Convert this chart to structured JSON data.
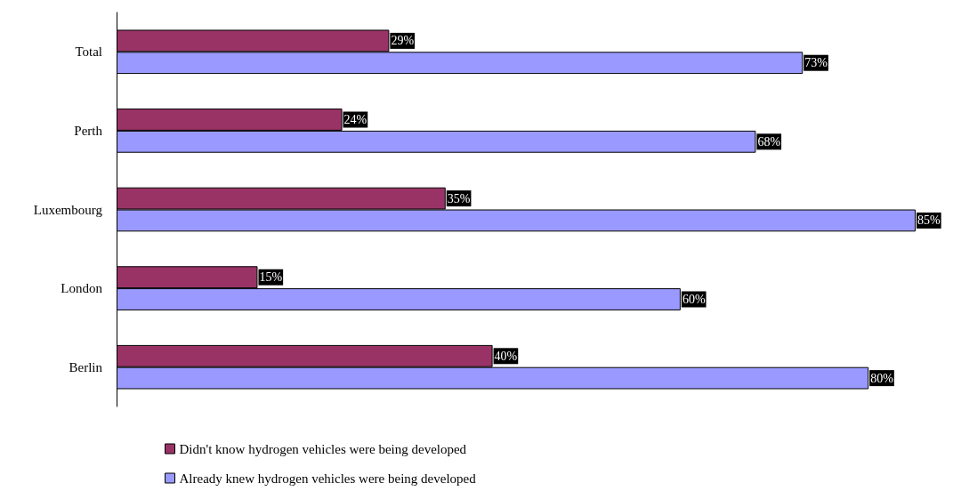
{
  "chart_data": {
    "type": "bar",
    "orientation": "horizontal",
    "categories": [
      "Total",
      "Perth",
      "Luxembourg",
      "London",
      "Berlin"
    ],
    "series": [
      {
        "name": "Didn't know hydrogen vehicles were being developed",
        "color": "#993366",
        "values": [
          29,
          24,
          35,
          15,
          40
        ],
        "value_labels": [
          "29%",
          "24%",
          "35%",
          "15%",
          "40%"
        ]
      },
      {
        "name": "Already knew hydrogen vehicles were being developed",
        "color": "#9999ff",
        "values": [
          73,
          68,
          85,
          60,
          80
        ],
        "value_labels": [
          "73%",
          "68%",
          "85%",
          "60%",
          "80%"
        ]
      }
    ],
    "legend": "bottom",
    "grid": false
  }
}
